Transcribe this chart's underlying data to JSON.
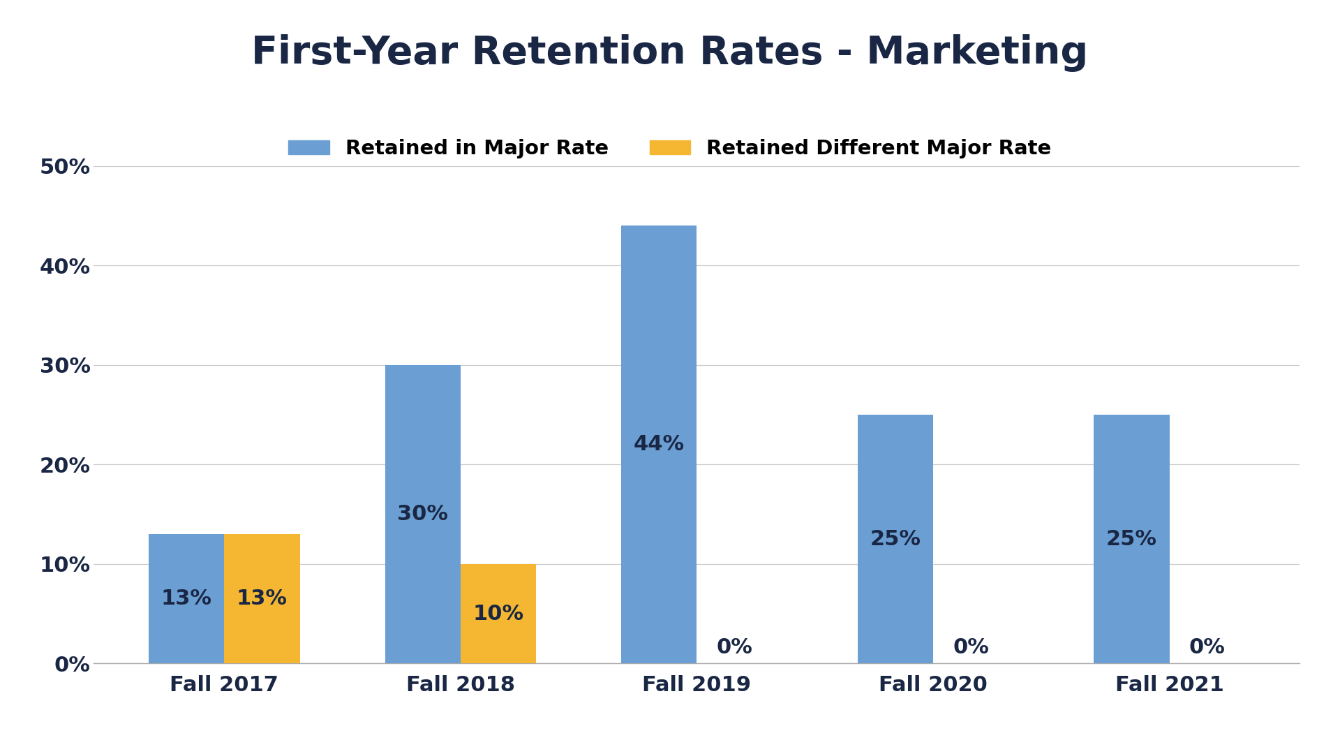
{
  "title": "First-Year Retention Rates - Marketing",
  "categories": [
    "Fall 2017",
    "Fall 2018",
    "Fall 2019",
    "Fall 2020",
    "Fall 2021"
  ],
  "retained_in_major": [
    13,
    30,
    44,
    25,
    25
  ],
  "retained_different_major": [
    13,
    10,
    0,
    0,
    0
  ],
  "bar_color_blue": "#6b9fd4",
  "bar_color_yellow": "#f5b731",
  "title_color": "#1a2744",
  "label_color": "#1a2744",
  "tick_color": "#1a2744",
  "legend_label_blue": "Retained in Major Rate",
  "legend_label_yellow": "Retained Different Major Rate",
  "ylim": [
    0,
    50
  ],
  "yticks": [
    0,
    10,
    20,
    30,
    40,
    50
  ],
  "ytick_labels": [
    "0%",
    "10%",
    "20%",
    "30%",
    "40%",
    "50%"
  ],
  "bar_width": 0.32,
  "title_fontsize": 40,
  "tick_fontsize": 22,
  "legend_fontsize": 21,
  "bar_label_fontsize": 22,
  "background_color": "#ffffff"
}
